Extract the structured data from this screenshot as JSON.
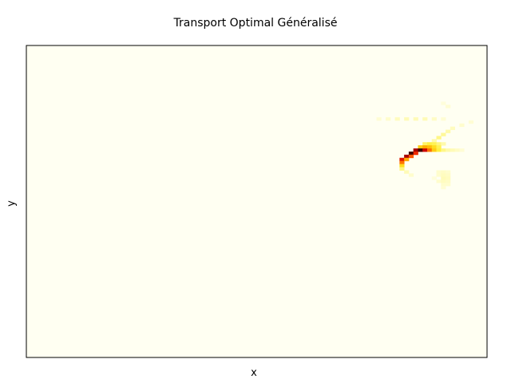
{
  "chart_data": {
    "type": "heatmap",
    "title": "Transport Optimal Généralisé",
    "xlabel": "x",
    "ylabel": "y",
    "xticks": [],
    "yticks": [],
    "grid": false,
    "colormap": "hot_r",
    "colors": {
      "background": "#fffff2",
      "frame": "#000000"
    },
    "grid_size": {
      "cols": 100,
      "rows": 100
    },
    "cells": [
      {
        "x": 76,
        "y": 23,
        "v": 0.04
      },
      {
        "x": 78,
        "y": 23,
        "v": 0.05
      },
      {
        "x": 80,
        "y": 23,
        "v": 0.07
      },
      {
        "x": 82,
        "y": 23,
        "v": 0.08
      },
      {
        "x": 84,
        "y": 23,
        "v": 0.08
      },
      {
        "x": 86,
        "y": 23,
        "v": 0.08
      },
      {
        "x": 88,
        "y": 23,
        "v": 0.06
      },
      {
        "x": 90,
        "y": 23,
        "v": 0.04
      },
      {
        "x": 90,
        "y": 18,
        "v": 0.03
      },
      {
        "x": 91,
        "y": 19,
        "v": 0.04
      },
      {
        "x": 88,
        "y": 30,
        "v": 0.1
      },
      {
        "x": 89,
        "y": 29,
        "v": 0.14
      },
      {
        "x": 90,
        "y": 28,
        "v": 0.12
      },
      {
        "x": 91,
        "y": 27,
        "v": 0.1
      },
      {
        "x": 92,
        "y": 26,
        "v": 0.07
      },
      {
        "x": 94,
        "y": 25,
        "v": 0.05
      },
      {
        "x": 96,
        "y": 24,
        "v": 0.04
      },
      {
        "x": 86,
        "y": 31,
        "v": 0.18
      },
      {
        "x": 87,
        "y": 31,
        "v": 0.22
      },
      {
        "x": 88,
        "y": 31,
        "v": 0.2
      },
      {
        "x": 89,
        "y": 31,
        "v": 0.15
      },
      {
        "x": 90,
        "y": 31,
        "v": 0.1
      },
      {
        "x": 85,
        "y": 32,
        "v": 0.35
      },
      {
        "x": 86,
        "y": 32,
        "v": 0.45
      },
      {
        "x": 87,
        "y": 32,
        "v": 0.4
      },
      {
        "x": 88,
        "y": 32,
        "v": 0.3
      },
      {
        "x": 89,
        "y": 32,
        "v": 0.2
      },
      {
        "x": 84,
        "y": 33,
        "v": 0.85
      },
      {
        "x": 85,
        "y": 33,
        "v": 0.95
      },
      {
        "x": 86,
        "y": 33,
        "v": 0.8
      },
      {
        "x": 87,
        "y": 33,
        "v": 0.55
      },
      {
        "x": 88,
        "y": 33,
        "v": 0.35
      },
      {
        "x": 89,
        "y": 33,
        "v": 0.22
      },
      {
        "x": 90,
        "y": 33,
        "v": 0.14
      },
      {
        "x": 91,
        "y": 33,
        "v": 0.1
      },
      {
        "x": 92,
        "y": 33,
        "v": 0.08
      },
      {
        "x": 93,
        "y": 33,
        "v": 0.06
      },
      {
        "x": 94,
        "y": 33,
        "v": 0.04
      },
      {
        "x": 83,
        "y": 34,
        "v": 0.95
      },
      {
        "x": 84,
        "y": 34,
        "v": 0.7
      },
      {
        "x": 82,
        "y": 35,
        "v": 0.85
      },
      {
        "x": 83,
        "y": 35,
        "v": 0.6
      },
      {
        "x": 81,
        "y": 36,
        "v": 0.75
      },
      {
        "x": 82,
        "y": 36,
        "v": 0.45
      },
      {
        "x": 81,
        "y": 37,
        "v": 0.55
      },
      {
        "x": 81,
        "y": 38,
        "v": 0.3
      },
      {
        "x": 81,
        "y": 39,
        "v": 0.15
      },
      {
        "x": 82,
        "y": 40,
        "v": 0.08
      },
      {
        "x": 83,
        "y": 41,
        "v": 0.05
      },
      {
        "x": 89,
        "y": 40,
        "v": 0.05
      },
      {
        "x": 90,
        "y": 40,
        "v": 0.06
      },
      {
        "x": 91,
        "y": 40,
        "v": 0.05
      },
      {
        "x": 89,
        "y": 41,
        "v": 0.05
      },
      {
        "x": 90,
        "y": 41,
        "v": 0.07
      },
      {
        "x": 91,
        "y": 41,
        "v": 0.06
      },
      {
        "x": 90,
        "y": 42,
        "v": 0.08
      },
      {
        "x": 91,
        "y": 42,
        "v": 0.07
      },
      {
        "x": 89,
        "y": 43,
        "v": 0.05
      },
      {
        "x": 90,
        "y": 43,
        "v": 0.07
      },
      {
        "x": 91,
        "y": 43,
        "v": 0.06
      },
      {
        "x": 90,
        "y": 44,
        "v": 0.05
      },
      {
        "x": 91,
        "y": 44,
        "v": 0.05
      },
      {
        "x": 90,
        "y": 45,
        "v": 0.04
      },
      {
        "x": 88,
        "y": 42,
        "v": 0.03
      }
    ]
  }
}
